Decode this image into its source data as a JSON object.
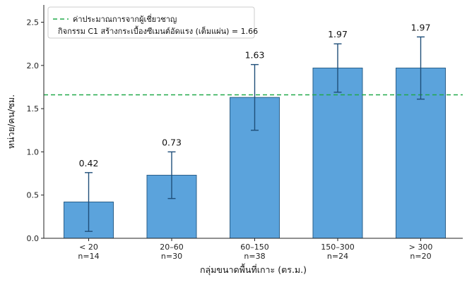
{
  "chart_data": {
    "type": "bar",
    "categories": [
      "< 20",
      "20–60",
      "60–150",
      "150–300",
      "> 300"
    ],
    "sample_sizes": [
      "n=14",
      "n=30",
      "n=38",
      "n=24",
      "n=20"
    ],
    "values": [
      0.42,
      0.73,
      1.63,
      1.97,
      1.97
    ],
    "value_labels": [
      "0.42",
      "0.73",
      "1.63",
      "1.97",
      "1.97"
    ],
    "error_low": [
      0.08,
      0.46,
      1.25,
      1.69,
      1.61
    ],
    "error_high": [
      0.76,
      1.0,
      2.01,
      2.25,
      2.33
    ],
    "reference_line": {
      "value": 1.66,
      "label_line1": "ค่าประมาณการจากผู้เชี่ยวชาญ",
      "label_line2": "กิจกรรม C1 สร้างกระเบื้องซีเมนต์อัดแรง (เต็มแผ่น) = 1.66"
    },
    "xlabel": "กลุ่มขนาดพื้นที่เกาะ (ตร.ม.)",
    "ylabel": "หน่วย/คน/ซม.",
    "ylim": [
      0,
      2.7
    ],
    "yticks": [
      "0.0",
      "0.5",
      "1.0",
      "1.5",
      "2.0",
      "2.5"
    ],
    "ytick_values": [
      0,
      0.5,
      1.0,
      1.5,
      2.0,
      2.5
    ],
    "grid": false,
    "legend_position": "top-left",
    "colors": {
      "bar_fill": "#5ba3dc",
      "bar_edge": "#2b5f8a",
      "error_bar": "#1f4e79",
      "reference_line": "#22aa4a"
    }
  }
}
